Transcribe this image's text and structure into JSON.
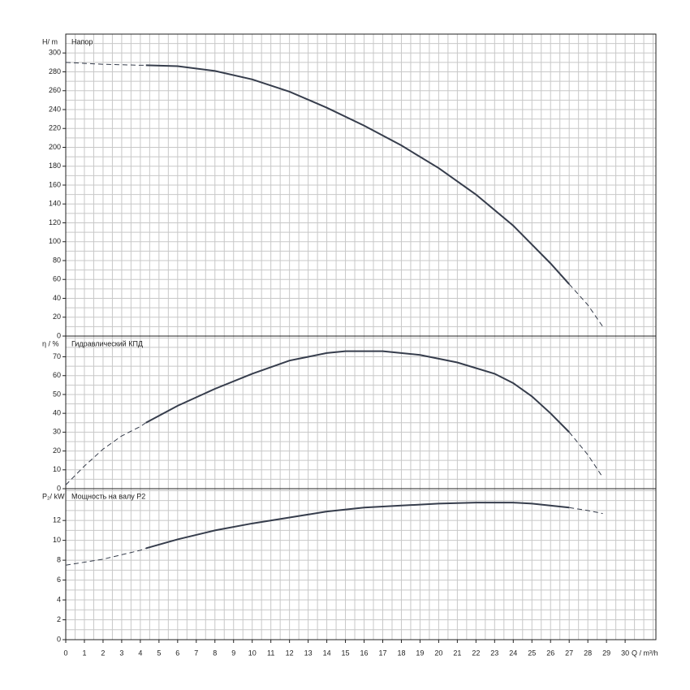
{
  "chart_data": [
    {
      "type": "line",
      "label": "Напор",
      "ylabel": "H/ m",
      "ylim": [
        0,
        320
      ],
      "yticks": [
        0,
        20,
        40,
        60,
        80,
        100,
        120,
        140,
        160,
        180,
        200,
        220,
        240,
        260,
        280,
        300
      ],
      "minor_step": 10,
      "color": "#363d4c",
      "series": [
        {
          "style": "dashed",
          "x": [
            0,
            2,
            4,
            4.3
          ],
          "values": [
            290,
            288,
            287,
            287
          ]
        },
        {
          "style": "solid",
          "x": [
            4.3,
            6,
            8,
            10,
            12,
            14,
            16,
            18,
            20,
            22,
            24,
            26,
            27
          ],
          "values": [
            287,
            286,
            281,
            272,
            259,
            242,
            223,
            202,
            178,
            150,
            117,
            77,
            55
          ]
        },
        {
          "style": "dashed",
          "x": [
            27,
            28,
            28.8
          ],
          "values": [
            55,
            33,
            10
          ]
        }
      ]
    },
    {
      "type": "line",
      "label": "Гидравлический КПД",
      "ylabel": "η / %",
      "ylim": [
        0,
        81
      ],
      "yticks": [
        0,
        10,
        20,
        30,
        40,
        50,
        60,
        70
      ],
      "minor_step": 5,
      "color": "#363d4c",
      "series": [
        {
          "style": "dashed",
          "x": [
            0,
            1,
            2,
            3,
            4,
            4.3
          ],
          "values": [
            2,
            12,
            21,
            28,
            33,
            35
          ]
        },
        {
          "style": "solid",
          "x": [
            4.3,
            6,
            8,
            10,
            12,
            14,
            15,
            17,
            19,
            21,
            23,
            24,
            25,
            26,
            27
          ],
          "values": [
            35,
            44,
            53,
            61,
            68,
            72,
            73,
            73,
            71,
            67,
            61,
            56,
            49,
            40,
            30
          ]
        },
        {
          "style": "dashed",
          "x": [
            27,
            28,
            28.8
          ],
          "values": [
            30,
            18,
            6
          ]
        }
      ]
    },
    {
      "type": "line",
      "label": "Мощность на валу P2",
      "ylabel": "P₂/ kW",
      "ylim": [
        0,
        15.2
      ],
      "yticks": [
        0,
        2,
        4,
        6,
        8,
        10,
        12
      ],
      "minor_step": 1,
      "color": "#363d4c",
      "xlabel": "Q / m³/h",
      "xlim": [
        0,
        31.65
      ],
      "x_minor_step": 0.5,
      "xticks": [
        0,
        1,
        2,
        3,
        4,
        5,
        6,
        7,
        8,
        9,
        10,
        11,
        12,
        13,
        14,
        15,
        16,
        17,
        18,
        19,
        20,
        21,
        22,
        23,
        24,
        25,
        26,
        27,
        28,
        29,
        30
      ],
      "series": [
        {
          "style": "dashed",
          "x": [
            0,
            2,
            4,
            4.3
          ],
          "values": [
            7.5,
            8.1,
            9,
            9.2
          ]
        },
        {
          "style": "solid",
          "x": [
            4.3,
            6,
            8,
            10,
            12,
            14,
            16,
            18,
            20,
            22,
            24,
            25,
            27
          ],
          "values": [
            9.2,
            10.1,
            11,
            11.7,
            12.3,
            12.9,
            13.3,
            13.5,
            13.7,
            13.8,
            13.8,
            13.7,
            13.3
          ]
        },
        {
          "style": "dashed",
          "x": [
            27,
            28,
            28.8
          ],
          "values": [
            13.3,
            13,
            12.7
          ]
        }
      ]
    }
  ]
}
